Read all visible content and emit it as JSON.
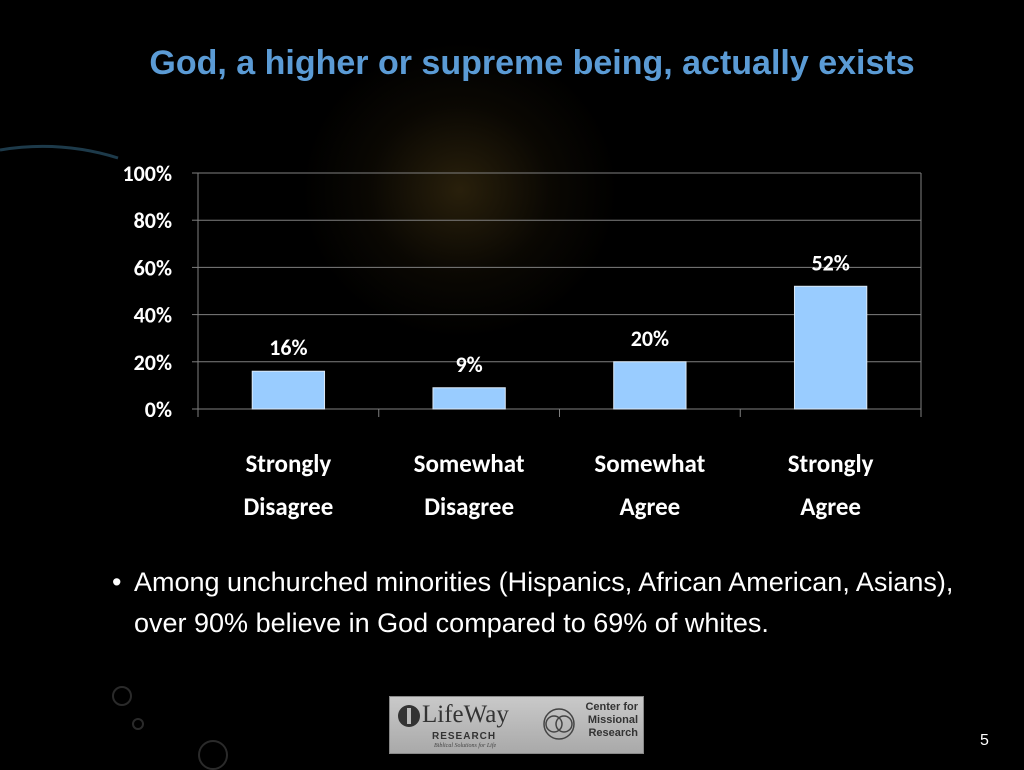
{
  "slide": {
    "title": "God, a higher or supreme being, actually exists",
    "bullet": "Among unchurched minorities (Hispanics, African American, Asians), over 90% believe in God compared to 69% of whites.",
    "bullet_marker": "•",
    "page_number": "5"
  },
  "logos": {
    "lifeway_name": "LifeWay",
    "lifeway_sub": "RESEARCH",
    "lifeway_tagline": "Biblical Solutions for Life",
    "cmr_line1": "Center for",
    "cmr_line2": "Missional",
    "cmr_line3": "Research"
  },
  "chart_data": {
    "type": "bar",
    "categories": [
      [
        "Strongly",
        "Disagree"
      ],
      [
        "Somewhat",
        "Disagree"
      ],
      [
        "Somewhat",
        "Agree"
      ],
      [
        "Strongly",
        "Agree"
      ]
    ],
    "values": [
      16,
      9,
      20,
      52
    ],
    "data_labels": [
      "16%",
      "9%",
      "20%",
      "52%"
    ],
    "yticks": [
      "0%",
      "20%",
      "40%",
      "60%",
      "80%",
      "100%"
    ],
    "ylim": [
      0,
      100
    ],
    "grid": true,
    "bar_color": "#99ccff",
    "grid_color": "#7f7f7f",
    "text_color": "#ffffff"
  }
}
